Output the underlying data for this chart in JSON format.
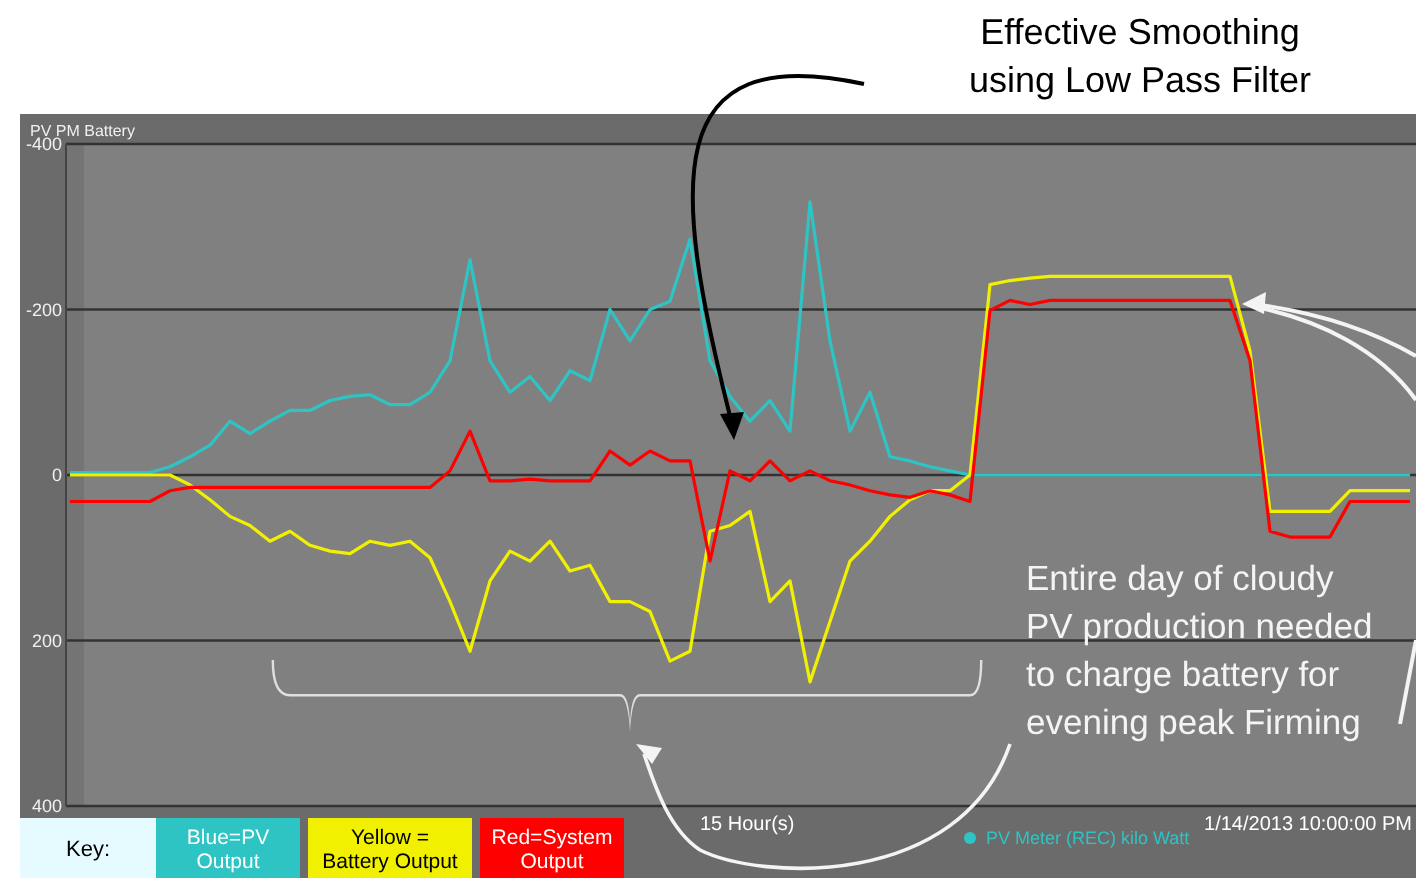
{
  "chart_data": {
    "type": "line",
    "title": "PV PM Battery",
    "xlabel": "15 Hour(s)",
    "annotations": [
      "Effective Smoothing using Low Pass Filter",
      "Entire day of cloudy PV production needed to charge battery for evening peak Firming",
      "1/14/2013 10:00:00 PM",
      "PV Meter (REC) kilo Watt"
    ],
    "categories": [
      null,
      null,
      null,
      null,
      null,
      null,
      null,
      null,
      null,
      null,
      null,
      null,
      null,
      null,
      null,
      null,
      null,
      null,
      null,
      null,
      null,
      null,
      null,
      null,
      null,
      null,
      null,
      null,
      null,
      null,
      null,
      null,
      null,
      null,
      null,
      null,
      null,
      null,
      null,
      null,
      null,
      null,
      null,
      null,
      null,
      null,
      null,
      null,
      null,
      null,
      null,
      null,
      null,
      null,
      null,
      null,
      null,
      null,
      null,
      null,
      null,
      null,
      null,
      null,
      null,
      null,
      null,
      null
    ],
    "series": [
      {
        "name": "Blue=PV Output",
        "color": "#2ec4c4",
        "values": [
          -3,
          -3,
          -3,
          -3,
          -3,
          -10,
          -22,
          -36,
          -65,
          -50,
          -65,
          -78,
          -78,
          -90,
          -95,
          -97,
          -85,
          -85,
          -100,
          -138,
          -260,
          -138,
          -100,
          -119,
          -90,
          -126,
          -114,
          -200,
          -162,
          -200,
          -210,
          -285,
          -138,
          -95,
          -65,
          -90,
          -53,
          -330,
          -162,
          -53,
          -100,
          -22,
          -17,
          -10,
          -5,
          0,
          0,
          0,
          0,
          0,
          0,
          0,
          0,
          0,
          0,
          0,
          0,
          0,
          0,
          0,
          0,
          0,
          0,
          0,
          0,
          0,
          0,
          0
        ]
      },
      {
        "name": "Yellow = Battery Output",
        "color": "#f0f000",
        "values": [
          0,
          0,
          0,
          0,
          0,
          0,
          12,
          30,
          50,
          61,
          80,
          68,
          85,
          92,
          95,
          80,
          85,
          80,
          100,
          153,
          213,
          128,
          92,
          104,
          80,
          116,
          109,
          153,
          153,
          165,
          225,
          213,
          68,
          61,
          44,
          153,
          128,
          250,
          177,
          104,
          80,
          50,
          30,
          19,
          19,
          0,
          -230,
          -235,
          -238,
          -240,
          -240,
          -240,
          -240,
          -240,
          -240,
          -240,
          -240,
          -240,
          -240,
          -150,
          44,
          44,
          44,
          44,
          19,
          19,
          19,
          19
        ]
      },
      {
        "name": "Red=System Output",
        "color": "#ff0000",
        "values": [
          32,
          32,
          32,
          32,
          32,
          19,
          15,
          15,
          15,
          15,
          15,
          15,
          15,
          15,
          15,
          15,
          15,
          15,
          15,
          -5,
          -53,
          7,
          7,
          5,
          7,
          7,
          7,
          -29,
          -12,
          -29,
          -17,
          -17,
          104,
          -5,
          7,
          -17,
          7,
          -5,
          7,
          12,
          19,
          24,
          27,
          19,
          24,
          32,
          -199,
          -211,
          -206,
          -211,
          -211,
          -211,
          -211,
          -211,
          -211,
          -211,
          -211,
          -211,
          -211,
          -138,
          68,
          75,
          75,
          75,
          32,
          32,
          32,
          32
        ]
      }
    ],
    "ylim": [
      400,
      -400
    ],
    "yticks": [
      -400,
      -200,
      0,
      200,
      400
    ],
    "grid": "y",
    "legend": "bottom left",
    "legend_title": "Key:"
  }
}
